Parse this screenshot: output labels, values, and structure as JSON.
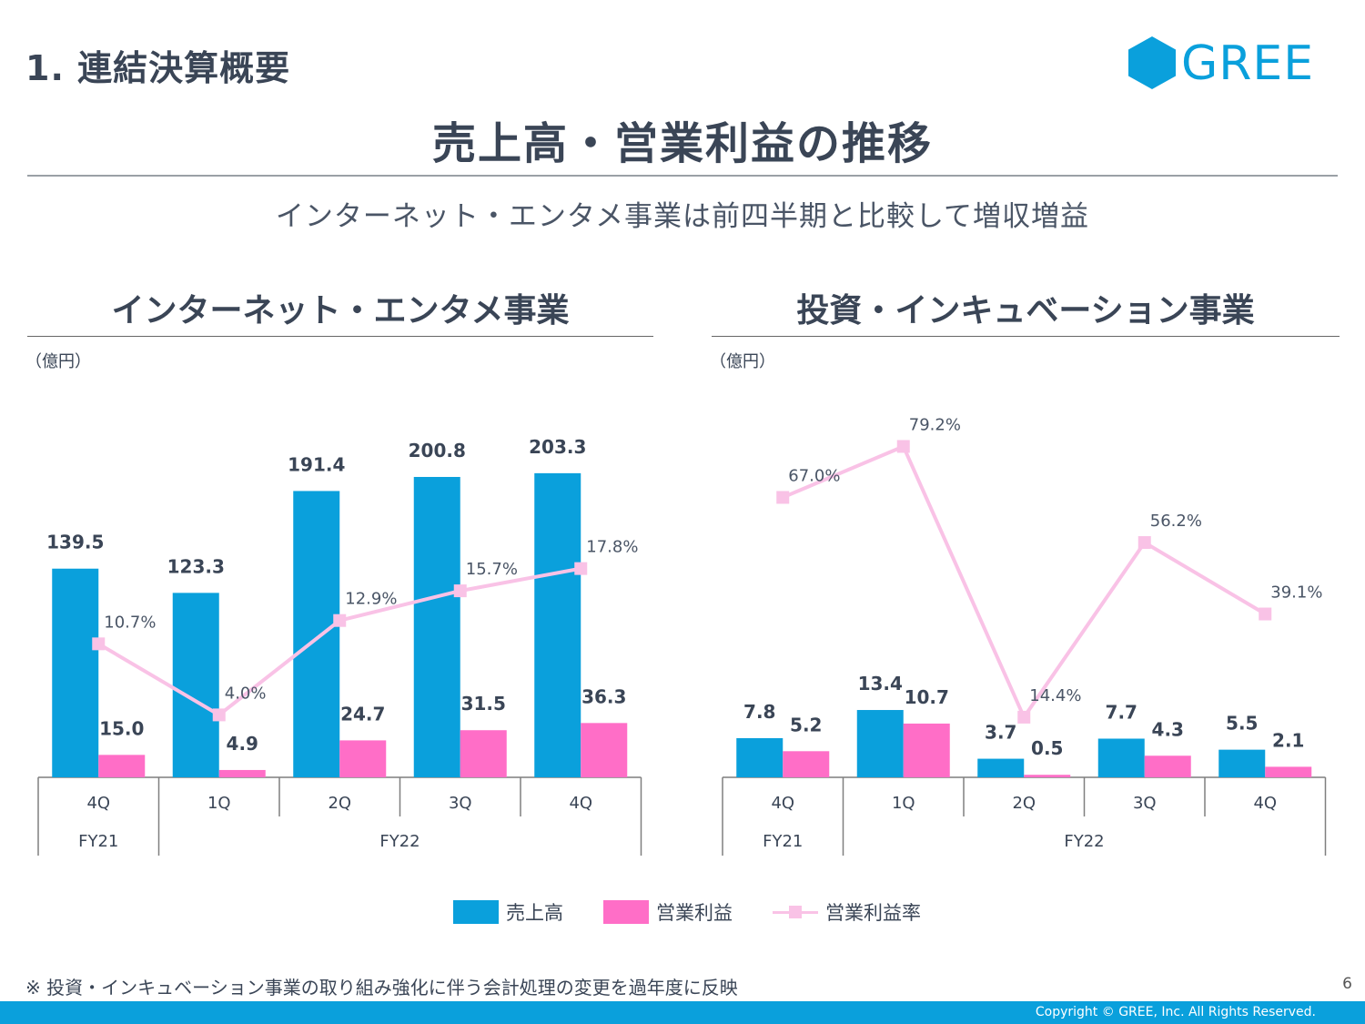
{
  "header": {
    "section_title": "1. 連結決算概要",
    "logo_text": "GREE"
  },
  "main_title": "売上高・営業利益の推移",
  "subtitle": "インターネット・エンタメ事業は前四半期と比較して増収増益",
  "colors": {
    "revenue": "#0aa0dc",
    "op_profit": "#ff6ec7",
    "op_margin": "#f9c2e6",
    "brand": "#0aa0dc"
  },
  "legend": {
    "revenue": "売上高",
    "op_profit": "営業利益",
    "op_margin": "営業利益率"
  },
  "panels": [
    {
      "title": "インターネット・エンタメ事業",
      "unit": "（億円）"
    },
    {
      "title": "投資・インキュベーション事業",
      "unit": "（億円）"
    }
  ],
  "chart_data": [
    {
      "type": "bar",
      "title": "インターネット・エンタメ事業",
      "ylabel": "（億円）",
      "categories": [
        "4Q",
        "1Q",
        "2Q",
        "3Q",
        "4Q"
      ],
      "groups": [
        {
          "label": "FY21",
          "span": 1
        },
        {
          "label": "FY22",
          "span": 4
        }
      ],
      "series": [
        {
          "name": "売上高",
          "kind": "bar",
          "values": [
            139.5,
            123.3,
            191.4,
            200.8,
            203.3
          ],
          "labels": [
            "139.5",
            "123.3",
            "191.4",
            "200.8",
            "203.3"
          ]
        },
        {
          "name": "営業利益",
          "kind": "bar",
          "values": [
            15.0,
            4.9,
            24.7,
            31.5,
            36.3
          ],
          "labels": [
            "15.0",
            "4.9",
            "24.7",
            "31.5",
            "36.3"
          ]
        },
        {
          "name": "営業利益率",
          "kind": "line",
          "values": [
            10.7,
            4.0,
            12.9,
            15.7,
            17.8
          ],
          "labels": [
            "10.7%",
            "4.0%",
            "12.9%",
            "15.7%",
            "17.8%"
          ]
        }
      ]
    },
    {
      "type": "bar",
      "title": "投資・インキュベーション事業",
      "ylabel": "（億円）",
      "categories": [
        "4Q",
        "1Q",
        "2Q",
        "3Q",
        "4Q"
      ],
      "groups": [
        {
          "label": "FY21",
          "span": 1
        },
        {
          "label": "FY22",
          "span": 4
        }
      ],
      "series": [
        {
          "name": "売上高",
          "kind": "bar",
          "values": [
            7.8,
            13.4,
            3.7,
            7.7,
            5.5
          ],
          "labels": [
            "7.8",
            "13.4",
            "3.7",
            "7.7",
            "5.5"
          ]
        },
        {
          "name": "営業利益",
          "kind": "bar",
          "values": [
            5.2,
            10.7,
            0.5,
            4.3,
            2.1
          ],
          "labels": [
            "5.2",
            "10.7",
            "0.5",
            "4.3",
            "2.1"
          ]
        },
        {
          "name": "営業利益率",
          "kind": "line",
          "values": [
            67.0,
            79.2,
            14.4,
            56.2,
            39.1
          ],
          "labels": [
            "67.0%",
            "79.2%",
            "14.4%",
            "56.2%",
            "39.1%"
          ]
        }
      ]
    }
  ],
  "footnote": "※ 投資・インキュベーション事業の取り組み強化に伴う会計処理の変更を過年度に反映",
  "page_number": "6",
  "copyright": "Copyright © GREE, Inc. All Rights Reserved."
}
